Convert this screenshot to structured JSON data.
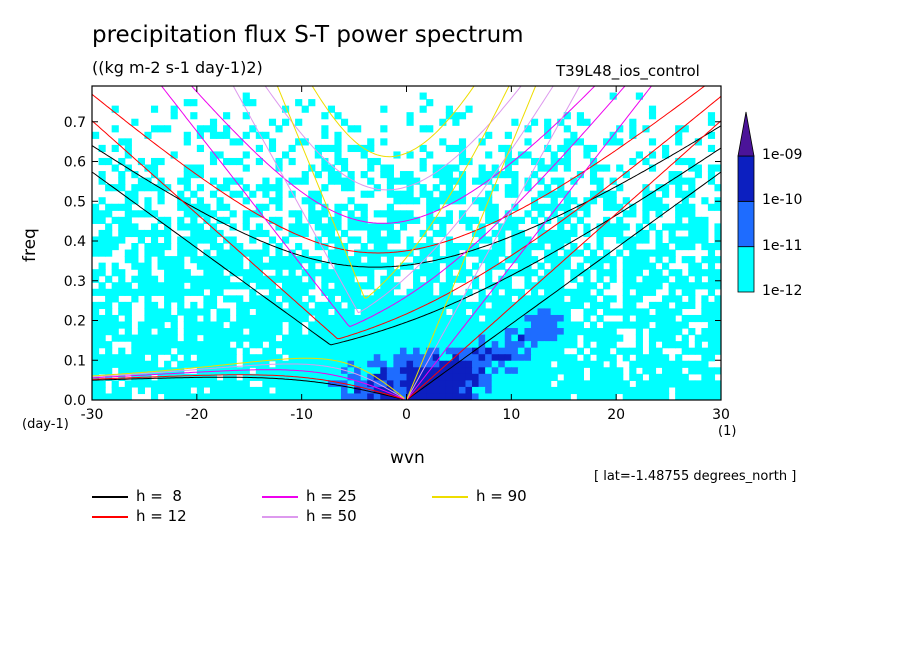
{
  "title": "precipitation flux S-T power spectrum",
  "units": "((kg m-2 s-1 day-1)2)",
  "run_name": "T39L48_ios_control",
  "lat_note": "[ lat=-1.48755 degrees_north ]",
  "chart_data": {
    "type": "heatmap",
    "title": "precipitation flux S-T power spectrum",
    "xlabel": "wvn",
    "ylabel": "freq",
    "x_unit": "(1)",
    "y_unit": "(day-1)",
    "xlim": [
      -30,
      30
    ],
    "ylim": [
      0,
      0.79
    ],
    "x_ticks": [
      -30,
      -20,
      -10,
      0,
      10,
      20,
      30
    ],
    "x_tick_labels": [
      "-30",
      "-20",
      "-10",
      "0",
      "10",
      "20",
      "30"
    ],
    "y_ticks": [
      0.0,
      0.1,
      0.2,
      0.3,
      0.4,
      0.5,
      0.6,
      0.7
    ],
    "y_tick_labels": [
      "0.0",
      "0.1",
      "0.2",
      "0.3",
      "0.4",
      "0.5",
      "0.6",
      "0.7"
    ],
    "colorbar": {
      "levels": [
        "1e-12",
        "1e-11",
        "1e-10",
        "1e-09"
      ],
      "colors": [
        "#00ffff",
        "#1e6cff",
        "#0c1fc0",
        "#4b1499"
      ],
      "extend": "max"
    },
    "dispersion_curves": [
      {
        "name": "h =  8",
        "h": 8,
        "color": "#000000"
      },
      {
        "name": "h = 12",
        "h": 12,
        "color": "#ff0000"
      },
      {
        "name": "h = 25",
        "h": 25,
        "color": "#ee00ee"
      },
      {
        "name": "h = 50",
        "h": 50,
        "color": "#dd99ee"
      },
      {
        "name": "h = 90",
        "h": 90,
        "color": "#eedd00"
      }
    ],
    "legend_position": "bottom-left",
    "grid": false
  }
}
